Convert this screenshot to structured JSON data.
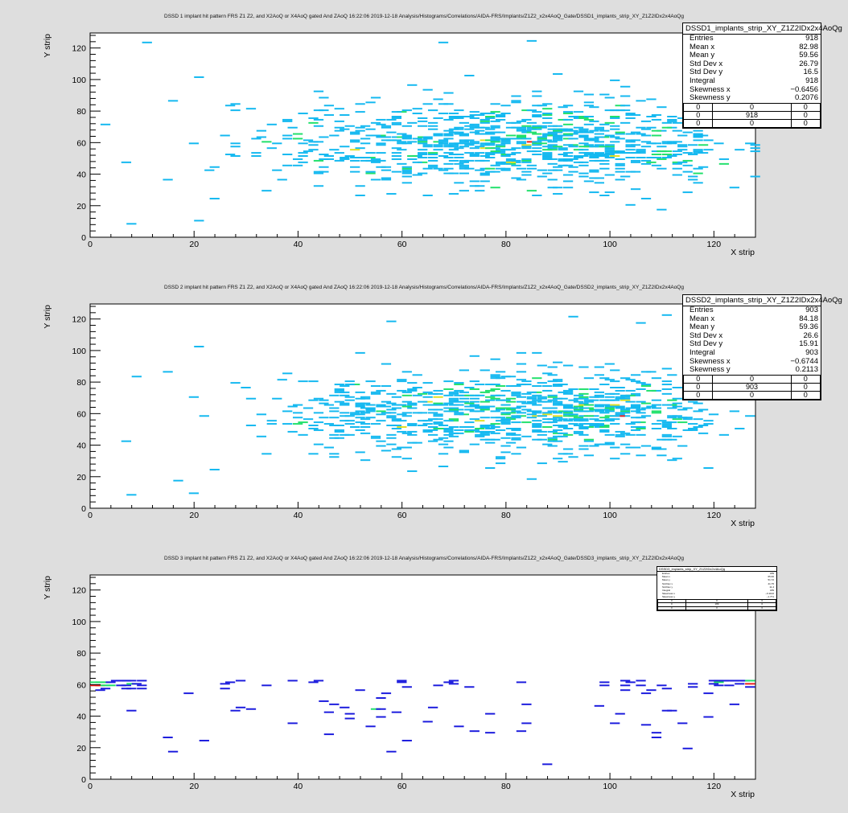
{
  "chart_data": [
    {
      "type": "heatmap",
      "title": "DSSD 1 implant hit pattern FRS Z1 Z2, and X2AoQ or X4AoQ gated And ZAoQ  16:22:06  2019-12-18  Analysis/Histograms/Correlations/AIDA-FRS/Implants/Z1Z2_x2x4AoQ_Gate/DSSD1_implants_strip_XY_Z1Z2IDx2x4AoQg",
      "xlabel": "X strip",
      "ylabel": "Y strip",
      "xlim": [
        0,
        128
      ],
      "ylim": [
        0,
        128
      ],
      "xticks": [
        0,
        20,
        40,
        60,
        80,
        100,
        120
      ],
      "yticks": [
        0,
        20,
        40,
        60,
        80,
        100,
        120
      ],
      "grid": false,
      "stats": {
        "name": "DSSD1_implants_strip_XY_Z1Z2IDx2x4AoQg",
        "rows": [
          [
            "Entries",
            "918"
          ],
          [
            "Mean x",
            "82.98"
          ],
          [
            "Mean y",
            "59.56"
          ],
          [
            "Std Dev x",
            "26.79"
          ],
          [
            "Std Dev y",
            "16.5"
          ],
          [
            "Integral",
            "918"
          ],
          [
            "Skewness x",
            "−0.6456"
          ],
          [
            "Skewness y",
            "0.2076"
          ]
        ],
        "grid": [
          [
            "0",
            "0",
            "0"
          ],
          [
            "0",
            "918",
            "0"
          ],
          [
            "0",
            "0",
            "0"
          ]
        ]
      },
      "distribution": {
        "mean_x": 82.98,
        "mean_y": 59.56,
        "sd_x": 26.79,
        "sd_y": 16.5,
        "entries": 918,
        "seed": 11
      },
      "hot_bins": [
        [
          7,
          8
        ],
        [
          10,
          123
        ],
        [
          15,
          86
        ],
        [
          20,
          101
        ],
        [
          20,
          10
        ],
        [
          23,
          24
        ],
        [
          27,
          84
        ],
        [
          45,
          83
        ],
        [
          58,
          79
        ],
        [
          67,
          123
        ],
        [
          84,
          80
        ],
        [
          94,
          76
        ],
        [
          100,
          80
        ]
      ]
    },
    {
      "type": "heatmap",
      "title": "DSSD 2 implant hit pattern FRS Z1 Z2, and X2AoQ or X4AoQ gated And ZAoQ  16:22:06  2019-12-18  Analysis/Histograms/Correlations/AIDA-FRS/Implants/Z1Z2_x2x4AoQ_Gate/DSSD2_implants_strip_XY_Z1Z2IDx2x4AoQg",
      "xlabel": "X strip",
      "ylabel": "Y strip",
      "xlim": [
        0,
        128
      ],
      "ylim": [
        0,
        128
      ],
      "xticks": [
        0,
        20,
        40,
        60,
        80,
        100,
        120
      ],
      "yticks": [
        0,
        20,
        40,
        60,
        80,
        100,
        120
      ],
      "grid": false,
      "stats": {
        "name": "DSSD2_implants_strip_XY_Z1Z2IDx2x4AoQg",
        "rows": [
          [
            "Entries",
            "903"
          ],
          [
            "Mean x",
            "84.18"
          ],
          [
            "Mean y",
            "59.36"
          ],
          [
            "Std Dev x",
            "26.6"
          ],
          [
            "Std Dev y",
            "15.91"
          ],
          [
            "Integral",
            "903"
          ],
          [
            "Skewness x",
            "−0.6744"
          ],
          [
            "Skewness y",
            "0.2113"
          ]
        ],
        "grid": [
          [
            "0",
            "0",
            "0"
          ],
          [
            "0",
            "903",
            "0"
          ],
          [
            "0",
            "0",
            "0"
          ]
        ]
      },
      "distribution": {
        "mean_x": 84.18,
        "mean_y": 59.36,
        "sd_x": 26.6,
        "sd_y": 15.91,
        "entries": 903,
        "seed": 29
      },
      "hot_bins": [
        [
          7,
          8
        ],
        [
          6,
          42
        ],
        [
          14,
          86
        ],
        [
          16,
          17
        ],
        [
          20,
          102
        ],
        [
          19,
          9
        ],
        [
          23,
          24
        ],
        [
          57,
          118
        ],
        [
          92,
          121
        ],
        [
          110,
          122
        ],
        [
          62,
          60
        ],
        [
          100,
          80
        ]
      ]
    },
    {
      "type": "heatmap",
      "title": "DSSD 3 implant hit pattern FRS Z1 Z2, and X2AoQ or X4AoQ gated And ZAoQ  16:22:06  2019-12-18  Analysis/Histograms/Correlations/AIDA-FRS/Implants/Z1Z2_x2x4AoQ_Gate/DSSD3_implants_strip_XY_Z1Z2IDx2x4AoQg",
      "xlabel": "X strip",
      "ylabel": "Y strip",
      "xlim": [
        0,
        128
      ],
      "ylim": [
        0,
        128
      ],
      "xticks": [
        0,
        20,
        40,
        60,
        80,
        100,
        120
      ],
      "yticks": [
        0,
        20,
        40,
        60,
        80,
        100,
        120
      ],
      "grid": false,
      "stats": {
        "name": "DSSD3_implants_strip_XY_Z1Z2IDx2x4AoQg",
        "rows": [
          [
            "Entries",
            "189"
          ],
          [
            "Mean x",
            "65.66"
          ],
          [
            "Mean y",
            "51.72"
          ],
          [
            "Std Dev x",
            "41.75"
          ],
          [
            "Std Dev y",
            "11.4"
          ],
          [
            "Integral",
            "189"
          ],
          [
            "Skewness x",
            "−0.1102"
          ],
          [
            "Skewness y",
            "−1.771"
          ]
        ],
        "grid": [
          [
            "0",
            "0",
            "0"
          ],
          [
            "0",
            "189",
            "0"
          ],
          [
            "0",
            "0",
            "0"
          ]
        ]
      },
      "bins": [
        [
          0,
          61,
          2
        ],
        [
          0,
          59,
          3
        ],
        [
          1,
          61,
          2
        ],
        [
          1,
          59,
          3
        ],
        [
          1,
          56,
          1
        ],
        [
          2,
          61,
          2
        ],
        [
          2,
          59,
          2
        ],
        [
          2,
          57,
          1
        ],
        [
          3,
          61,
          1
        ],
        [
          3,
          59,
          2
        ],
        [
          4,
          62,
          1
        ],
        [
          5,
          62,
          1
        ],
        [
          6,
          62,
          1
        ],
        [
          7,
          62,
          1
        ],
        [
          5,
          59,
          1
        ],
        [
          6,
          59,
          1
        ],
        [
          6,
          57,
          1
        ],
        [
          7,
          57,
          1
        ],
        [
          7,
          60,
          2
        ],
        [
          8,
          60,
          1
        ],
        [
          7,
          43,
          1
        ],
        [
          9,
          62,
          1
        ],
        [
          9,
          59,
          1
        ],
        [
          9,
          57,
          1
        ],
        [
          14,
          26,
          1
        ],
        [
          15,
          17,
          1
        ],
        [
          18,
          54,
          1
        ],
        [
          21,
          24,
          1
        ],
        [
          25,
          60,
          1
        ],
        [
          25,
          57,
          1
        ],
        [
          26,
          61,
          1
        ],
        [
          27,
          43,
          1
        ],
        [
          28,
          45,
          1
        ],
        [
          28,
          62,
          1
        ],
        [
          30,
          44,
          1
        ],
        [
          33,
          59,
          1
        ],
        [
          38,
          62,
          1
        ],
        [
          38,
          35,
          1
        ],
        [
          42,
          61,
          1
        ],
        [
          43,
          62,
          1
        ],
        [
          44,
          49,
          1
        ],
        [
          45,
          42,
          1
        ],
        [
          45,
          28,
          1
        ],
        [
          46,
          47,
          1
        ],
        [
          48,
          45,
          1
        ],
        [
          49,
          41,
          1
        ],
        [
          49,
          38,
          1
        ],
        [
          51,
          56,
          1
        ],
        [
          53,
          33,
          1
        ],
        [
          54,
          44,
          2
        ],
        [
          55,
          44,
          1
        ],
        [
          55,
          51,
          1
        ],
        [
          55,
          39,
          1
        ],
        [
          56,
          54,
          1
        ],
        [
          57,
          17,
          1
        ],
        [
          58,
          42,
          1
        ],
        [
          59,
          62,
          1
        ],
        [
          59,
          61,
          1
        ],
        [
          60,
          24,
          1
        ],
        [
          60,
          58,
          1
        ],
        [
          64,
          36,
          1
        ],
        [
          65,
          45,
          1
        ],
        [
          66,
          59,
          1
        ],
        [
          68,
          61,
          1
        ],
        [
          69,
          62,
          1
        ],
        [
          69,
          60,
          1
        ],
        [
          70,
          33,
          1
        ],
        [
          72,
          58,
          1
        ],
        [
          73,
          30,
          1
        ],
        [
          76,
          29,
          1
        ],
        [
          76,
          41,
          1
        ],
        [
          82,
          61,
          1
        ],
        [
          82,
          30,
          1
        ],
        [
          83,
          47,
          1
        ],
        [
          83,
          35,
          1
        ],
        [
          87,
          9,
          1
        ],
        [
          97,
          46,
          1
        ],
        [
          98,
          61,
          1
        ],
        [
          98,
          59,
          1
        ],
        [
          100,
          35,
          1
        ],
        [
          101,
          41,
          1
        ],
        [
          102,
          62,
          1
        ],
        [
          102,
          59,
          1
        ],
        [
          102,
          56,
          1
        ],
        [
          103,
          61,
          1
        ],
        [
          105,
          62,
          1
        ],
        [
          105,
          59,
          1
        ],
        [
          106,
          54,
          1
        ],
        [
          106,
          34,
          1
        ],
        [
          107,
          56,
          1
        ],
        [
          108,
          29,
          1
        ],
        [
          108,
          26,
          1
        ],
        [
          109,
          59,
          1
        ],
        [
          110,
          57,
          1
        ],
        [
          110,
          43,
          1
        ],
        [
          111,
          43,
          1
        ],
        [
          113,
          35,
          1
        ],
        [
          114,
          19,
          1
        ],
        [
          115,
          60,
          1
        ],
        [
          115,
          58,
          1
        ],
        [
          118,
          54,
          1
        ],
        [
          118,
          39,
          1
        ],
        [
          119,
          62,
          1
        ],
        [
          119,
          60,
          1
        ],
        [
          120,
          62,
          1
        ],
        [
          120,
          61,
          2
        ],
        [
          120,
          59,
          1
        ],
        [
          121,
          62,
          1
        ],
        [
          122,
          62,
          1
        ],
        [
          122,
          59,
          1
        ],
        [
          123,
          62,
          1
        ],
        [
          124,
          62,
          1
        ],
        [
          124,
          60,
          1
        ],
        [
          123,
          47,
          1
        ],
        [
          125,
          62,
          1
        ],
        [
          126,
          62,
          2
        ],
        [
          126,
          60,
          3
        ],
        [
          126,
          58,
          1
        ]
      ]
    }
  ]
}
